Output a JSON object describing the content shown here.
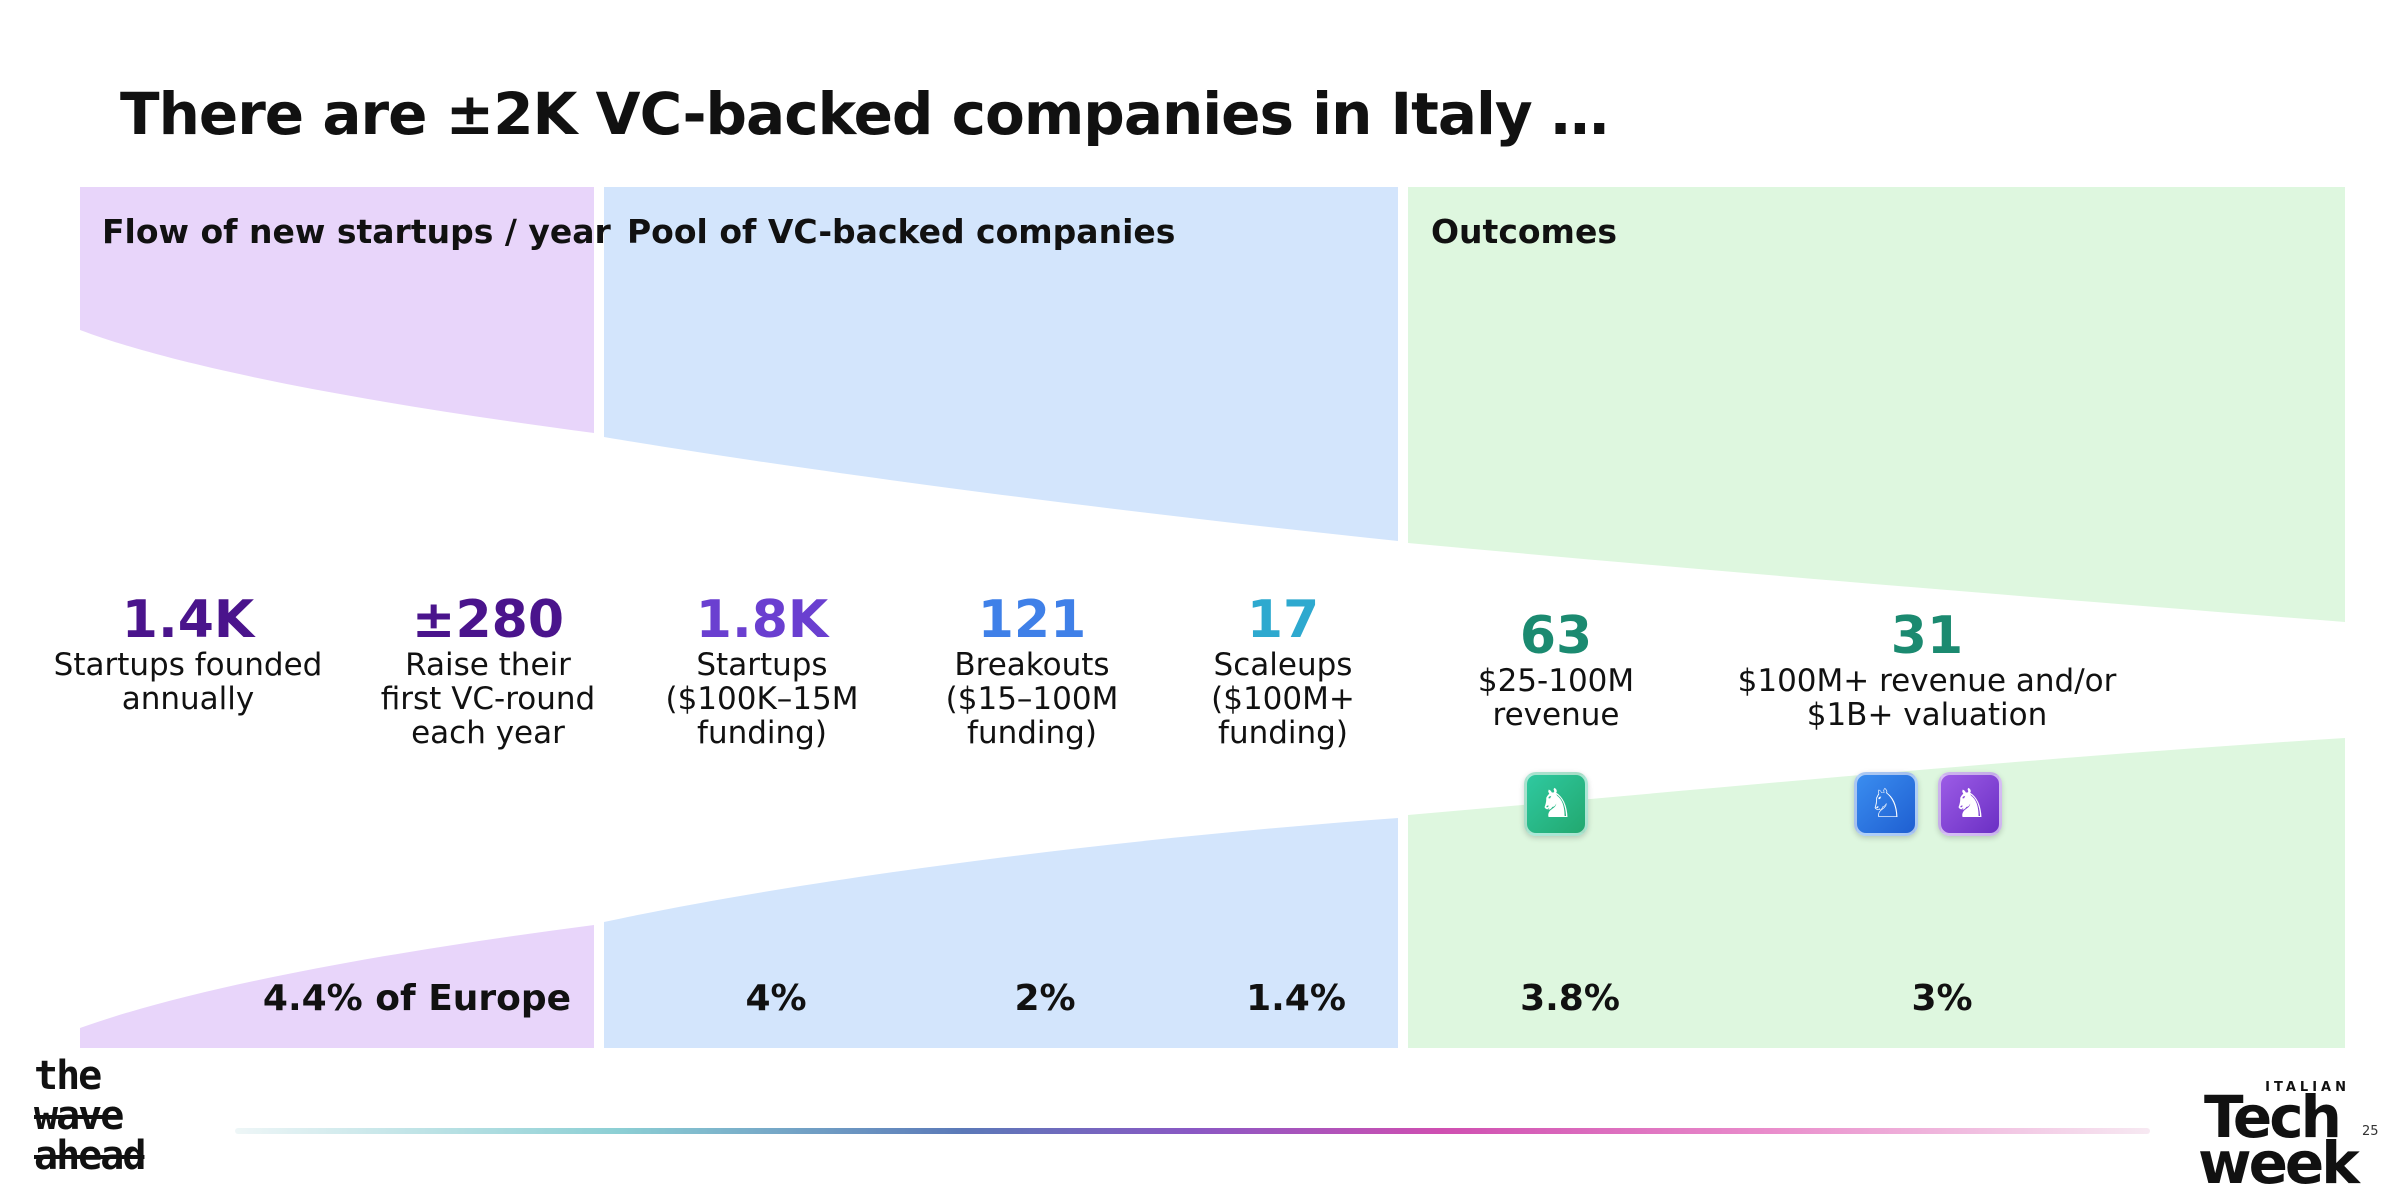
{
  "title": "There are ±2K VC-backed companies in Italy …",
  "sections": [
    {
      "label": "Flow of new startups / year"
    },
    {
      "label": "Pool of VC-backed companies"
    },
    {
      "label": "Outcomes"
    }
  ],
  "stats": [
    {
      "value": "1.4K",
      "desc": [
        "Startups founded",
        "annually"
      ],
      "color": "#4a148c"
    },
    {
      "value": "±280",
      "desc": [
        "Raise their",
        "first VC-round",
        "each year"
      ],
      "color": "#4a148c"
    },
    {
      "value": "1.8K",
      "desc": [
        "Startups",
        "($100K–15M",
        "funding)"
      ],
      "color": "#6a3fd0"
    },
    {
      "value": "121",
      "desc": [
        "Breakouts",
        "($15–100M",
        "funding)"
      ],
      "color": "#3f80e8"
    },
    {
      "value": "17",
      "desc": [
        "Scaleups",
        "($100M+",
        "funding)"
      ],
      "color": "#2ea9cf"
    },
    {
      "value": "63",
      "desc": [
        "$25-100M",
        "revenue"
      ],
      "color": "#1b8a70"
    },
    {
      "value": "31",
      "desc": [
        "$100M+ revenue and/or",
        "$1B+ valuation"
      ],
      "color": "#1b8a70"
    }
  ],
  "percentages": [
    "4.4% of Europe",
    "4%",
    "2%",
    "1.4%",
    "3.8%",
    "3%"
  ],
  "badges": [
    {
      "icon": "horse-icon",
      "glyph": "♞",
      "colors": [
        "#2fc9a0",
        "#22a86f"
      ]
    },
    {
      "icon": "winged-horse-icon",
      "glyph": "♘",
      "colors": [
        "#3a8df0",
        "#1f5fd1"
      ]
    },
    {
      "icon": "unicorn-icon",
      "glyph": "♞",
      "colors": [
        "#9c5ce6",
        "#6b2fc4"
      ]
    }
  ],
  "colors": {
    "flow_bg": "#e8d5fa",
    "pool_bg": "#d3e5fc",
    "outcome_bg": "#def7df"
  },
  "logos": {
    "left_lines": [
      "the",
      "wave",
      "ahead"
    ],
    "right_small": "ITALIAN",
    "right_big": [
      "Tech",
      "week"
    ]
  },
  "page_number": "25"
}
